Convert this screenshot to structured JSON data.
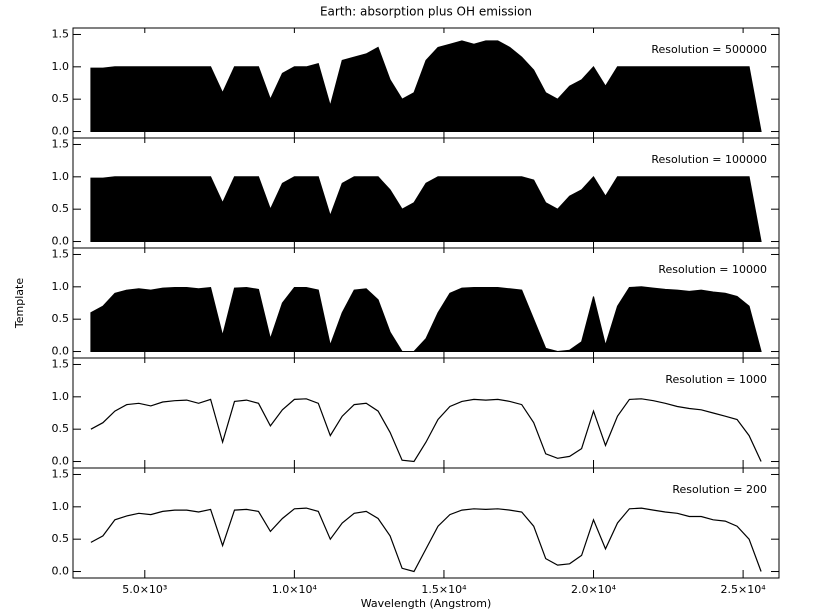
{
  "chart_data": [
    {
      "type": "area",
      "title": "Earth: absorption plus OH emission",
      "annotation": "Resolution = 500000",
      "color": "#000000",
      "x": [
        3200,
        3600,
        4000,
        4400,
        4800,
        5200,
        5600,
        6000,
        6400,
        6800,
        7200,
        7600,
        8000,
        8400,
        8800,
        9200,
        9600,
        10000,
        10400,
        10800,
        11200,
        11600,
        12000,
        12400,
        12800,
        13200,
        13600,
        14000,
        14400,
        14800,
        15200,
        15600,
        16000,
        16400,
        16800,
        17200,
        17600,
        18000,
        18400,
        18800,
        19200,
        19600,
        20000,
        20400,
        20800,
        21200,
        21600,
        22000,
        22400,
        22800,
        23200,
        23600,
        24000,
        24400,
        24800,
        25200,
        25600
      ],
      "values": [
        0.98,
        0.98,
        1.0,
        1.0,
        1.0,
        1.0,
        1.0,
        1.0,
        1.0,
        1.0,
        1.0,
        0.6,
        1.0,
        1.0,
        1.0,
        0.5,
        0.9,
        1.0,
        1.0,
        1.05,
        0.4,
        1.1,
        1.15,
        1.2,
        1.3,
        0.8,
        0.5,
        0.6,
        1.1,
        1.3,
        1.35,
        1.4,
        1.35,
        1.4,
        1.4,
        1.3,
        1.15,
        0.95,
        0.6,
        0.5,
        0.7,
        0.8,
        1.0,
        0.7,
        1.0,
        1.0,
        1.0,
        1.0,
        1.0,
        1.0,
        1.0,
        1.0,
        1.0,
        1.0,
        1.0,
        1.0,
        0.0
      ],
      "xlim": [
        2600,
        26200
      ],
      "xticks": [
        5000,
        10000,
        15000,
        20000,
        25000
      ],
      "ylim": [
        -0.1,
        1.6
      ],
      "yticks": [
        {
          "value": 0,
          "label": "0.0"
        },
        {
          "value": 0.5,
          "label": "0.5"
        },
        {
          "value": 1,
          "label": "1.0"
        },
        {
          "value": 1.5,
          "label": "1.5"
        }
      ]
    },
    {
      "type": "area",
      "annotation": "Resolution = 100000",
      "color": "#000000",
      "x": [
        3200,
        3600,
        4000,
        4400,
        4800,
        5200,
        5600,
        6000,
        6400,
        6800,
        7200,
        7600,
        8000,
        8400,
        8800,
        9200,
        9600,
        10000,
        10400,
        10800,
        11200,
        11600,
        12000,
        12400,
        12800,
        13200,
        13600,
        14000,
        14400,
        14800,
        15200,
        15600,
        16000,
        16400,
        16800,
        17200,
        17600,
        18000,
        18400,
        18800,
        19200,
        19600,
        20000,
        20400,
        20800,
        21200,
        21600,
        22000,
        22400,
        22800,
        23200,
        23600,
        24000,
        24400,
        24800,
        25200,
        25600
      ],
      "values": [
        0.98,
        0.98,
        1.0,
        1.0,
        1.0,
        1.0,
        1.0,
        1.0,
        1.0,
        1.0,
        1.0,
        0.6,
        1.0,
        1.0,
        1.0,
        0.5,
        0.9,
        1.0,
        1.0,
        1.0,
        0.4,
        0.9,
        1.0,
        1.0,
        1.0,
        0.8,
        0.5,
        0.6,
        0.9,
        1.0,
        1.0,
        1.0,
        1.0,
        1.0,
        1.0,
        1.0,
        1.0,
        0.95,
        0.6,
        0.5,
        0.7,
        0.8,
        1.0,
        0.7,
        1.0,
        1.0,
        1.0,
        1.0,
        1.0,
        1.0,
        1.0,
        1.0,
        1.0,
        1.0,
        1.0,
        1.0,
        0.0
      ],
      "xlim": [
        2600,
        26200
      ],
      "xticks": [
        5000,
        10000,
        15000,
        20000,
        25000
      ],
      "ylim": [
        -0.1,
        1.6
      ],
      "yticks": [
        {
          "value": 0,
          "label": "0.0"
        },
        {
          "value": 0.5,
          "label": "0.5"
        },
        {
          "value": 1,
          "label": "1.0"
        },
        {
          "value": 1.5,
          "label": "1.5"
        }
      ]
    },
    {
      "type": "area",
      "annotation": "Resolution = 10000",
      "ylabel": "Template",
      "color": "#000000",
      "x": [
        3200,
        3600,
        4000,
        4400,
        4800,
        5200,
        5600,
        6000,
        6400,
        6800,
        7200,
        7600,
        8000,
        8400,
        8800,
        9200,
        9600,
        10000,
        10400,
        10800,
        11200,
        11600,
        12000,
        12400,
        12800,
        13200,
        13600,
        14000,
        14400,
        14800,
        15200,
        15600,
        16000,
        16400,
        16800,
        17200,
        17600,
        18000,
        18400,
        18800,
        19200,
        19600,
        20000,
        20400,
        20800,
        21200,
        21600,
        22000,
        22400,
        22800,
        23200,
        23600,
        24000,
        24400,
        24800,
        25200,
        25600
      ],
      "values": [
        0.6,
        0.7,
        0.9,
        0.95,
        0.97,
        0.95,
        0.98,
        0.99,
        0.99,
        0.97,
        0.99,
        0.25,
        0.98,
        0.99,
        0.96,
        0.2,
        0.75,
        0.99,
        0.99,
        0.95,
        0.1,
        0.6,
        0.95,
        0.97,
        0.8,
        0.3,
        0.0,
        0.0,
        0.2,
        0.6,
        0.9,
        0.98,
        0.99,
        0.99,
        0.99,
        0.97,
        0.95,
        0.5,
        0.05,
        0.0,
        0.02,
        0.15,
        0.85,
        0.1,
        0.7,
        0.99,
        1.0,
        0.98,
        0.96,
        0.95,
        0.93,
        0.95,
        0.92,
        0.9,
        0.85,
        0.7,
        0.0
      ],
      "xlim": [
        2600,
        26200
      ],
      "xticks": [
        5000,
        10000,
        15000,
        20000,
        25000
      ],
      "ylim": [
        -0.1,
        1.6
      ],
      "yticks": [
        {
          "value": 0,
          "label": "0.0"
        },
        {
          "value": 0.5,
          "label": "0.5"
        },
        {
          "value": 1,
          "label": "1.0"
        },
        {
          "value": 1.5,
          "label": "1.5"
        }
      ]
    },
    {
      "type": "line",
      "annotation": "Resolution = 1000",
      "color": "#000000",
      "x": [
        3200,
        3600,
        4000,
        4400,
        4800,
        5200,
        5600,
        6000,
        6400,
        6800,
        7200,
        7600,
        8000,
        8400,
        8800,
        9200,
        9600,
        10000,
        10400,
        10800,
        11200,
        11600,
        12000,
        12400,
        12800,
        13200,
        13600,
        14000,
        14400,
        14800,
        15200,
        15600,
        16000,
        16400,
        16800,
        17200,
        17600,
        18000,
        18400,
        18800,
        19200,
        19600,
        20000,
        20400,
        20800,
        21200,
        21600,
        22000,
        22400,
        22800,
        23200,
        23600,
        24000,
        24400,
        24800,
        25200,
        25600
      ],
      "values": [
        0.5,
        0.6,
        0.78,
        0.88,
        0.9,
        0.86,
        0.92,
        0.94,
        0.95,
        0.9,
        0.96,
        0.3,
        0.93,
        0.95,
        0.9,
        0.55,
        0.8,
        0.96,
        0.97,
        0.9,
        0.4,
        0.7,
        0.88,
        0.9,
        0.78,
        0.45,
        0.02,
        0.0,
        0.3,
        0.65,
        0.85,
        0.93,
        0.96,
        0.95,
        0.96,
        0.93,
        0.88,
        0.6,
        0.12,
        0.05,
        0.08,
        0.2,
        0.78,
        0.25,
        0.7,
        0.96,
        0.97,
        0.94,
        0.9,
        0.85,
        0.82,
        0.8,
        0.75,
        0.7,
        0.65,
        0.4,
        0.0
      ],
      "xlim": [
        2600,
        26200
      ],
      "xticks": [
        5000,
        10000,
        15000,
        20000,
        25000
      ],
      "ylim": [
        -0.1,
        1.6
      ],
      "yticks": [
        {
          "value": 0,
          "label": "0.0"
        },
        {
          "value": 0.5,
          "label": "0.5"
        },
        {
          "value": 1,
          "label": "1.0"
        },
        {
          "value": 1.5,
          "label": "1.5"
        }
      ]
    },
    {
      "type": "line",
      "annotation": "Resolution = 200",
      "xlabel": "Wavelength (Angstrom)",
      "color": "#000000",
      "x": [
        3200,
        3600,
        4000,
        4400,
        4800,
        5200,
        5600,
        6000,
        6400,
        6800,
        7200,
        7600,
        8000,
        8400,
        8800,
        9200,
        9600,
        10000,
        10400,
        10800,
        11200,
        11600,
        12000,
        12400,
        12800,
        13200,
        13600,
        14000,
        14400,
        14800,
        15200,
        15600,
        16000,
        16400,
        16800,
        17200,
        17600,
        18000,
        18400,
        18800,
        19200,
        19600,
        20000,
        20400,
        20800,
        21200,
        21600,
        22000,
        22400,
        22800,
        23200,
        23600,
        24000,
        24400,
        24800,
        25200,
        25600
      ],
      "values": [
        0.45,
        0.55,
        0.8,
        0.86,
        0.9,
        0.88,
        0.93,
        0.95,
        0.95,
        0.92,
        0.96,
        0.4,
        0.95,
        0.96,
        0.93,
        0.62,
        0.82,
        0.97,
        0.98,
        0.93,
        0.5,
        0.75,
        0.9,
        0.93,
        0.82,
        0.55,
        0.05,
        0.0,
        0.35,
        0.7,
        0.88,
        0.95,
        0.97,
        0.96,
        0.97,
        0.95,
        0.92,
        0.7,
        0.2,
        0.1,
        0.12,
        0.25,
        0.8,
        0.35,
        0.75,
        0.97,
        0.98,
        0.95,
        0.92,
        0.9,
        0.85,
        0.85,
        0.8,
        0.78,
        0.7,
        0.5,
        0.0
      ],
      "xlim": [
        2600,
        26200
      ],
      "xticks": [
        {
          "value": 5000,
          "label": "5.0×10³"
        },
        {
          "value": 10000,
          "label": "1.0×10⁴"
        },
        {
          "value": 15000,
          "label": "1.5×10⁴"
        },
        {
          "value": 20000,
          "label": "2.0×10⁴"
        },
        {
          "value": 25000,
          "label": "2.5×10⁴"
        }
      ],
      "ylim": [
        -0.1,
        1.6
      ],
      "yticks": [
        {
          "value": 0,
          "label": "0.0"
        },
        {
          "value": 0.5,
          "label": "0.5"
        },
        {
          "value": 1,
          "label": "1.0"
        },
        {
          "value": 1.5,
          "label": "1.5"
        }
      ]
    }
  ]
}
